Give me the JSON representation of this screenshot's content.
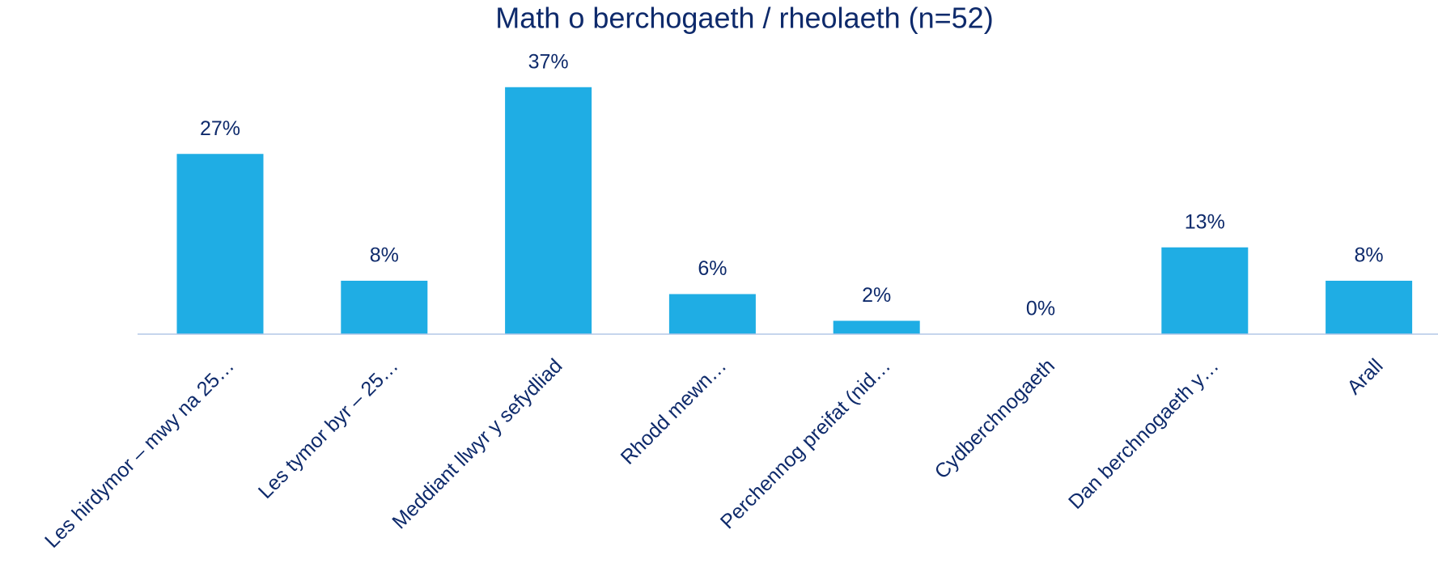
{
  "chart_data": {
    "type": "bar",
    "title": "Math o berchogaeth / rheolaeth (n=52)",
    "categories": [
      "Les hirdymor – mwy na 25…",
      "Les tymor byr – 25…",
      "Meddiant llwyr y sefydliad",
      "Rhodd mewn…",
      "Perchennog preifat (nid…",
      "Cydberchnogaeth",
      "Dan berchnogaeth y…",
      "Arall"
    ],
    "values": [
      27,
      8,
      37,
      6,
      2,
      0,
      13,
      8
    ],
    "value_labels": [
      "27%",
      "8%",
      "37%",
      "6%",
      "2%",
      "0%",
      "13%",
      "8%"
    ],
    "color": "#1fade4",
    "ylim": [
      0,
      40
    ]
  }
}
